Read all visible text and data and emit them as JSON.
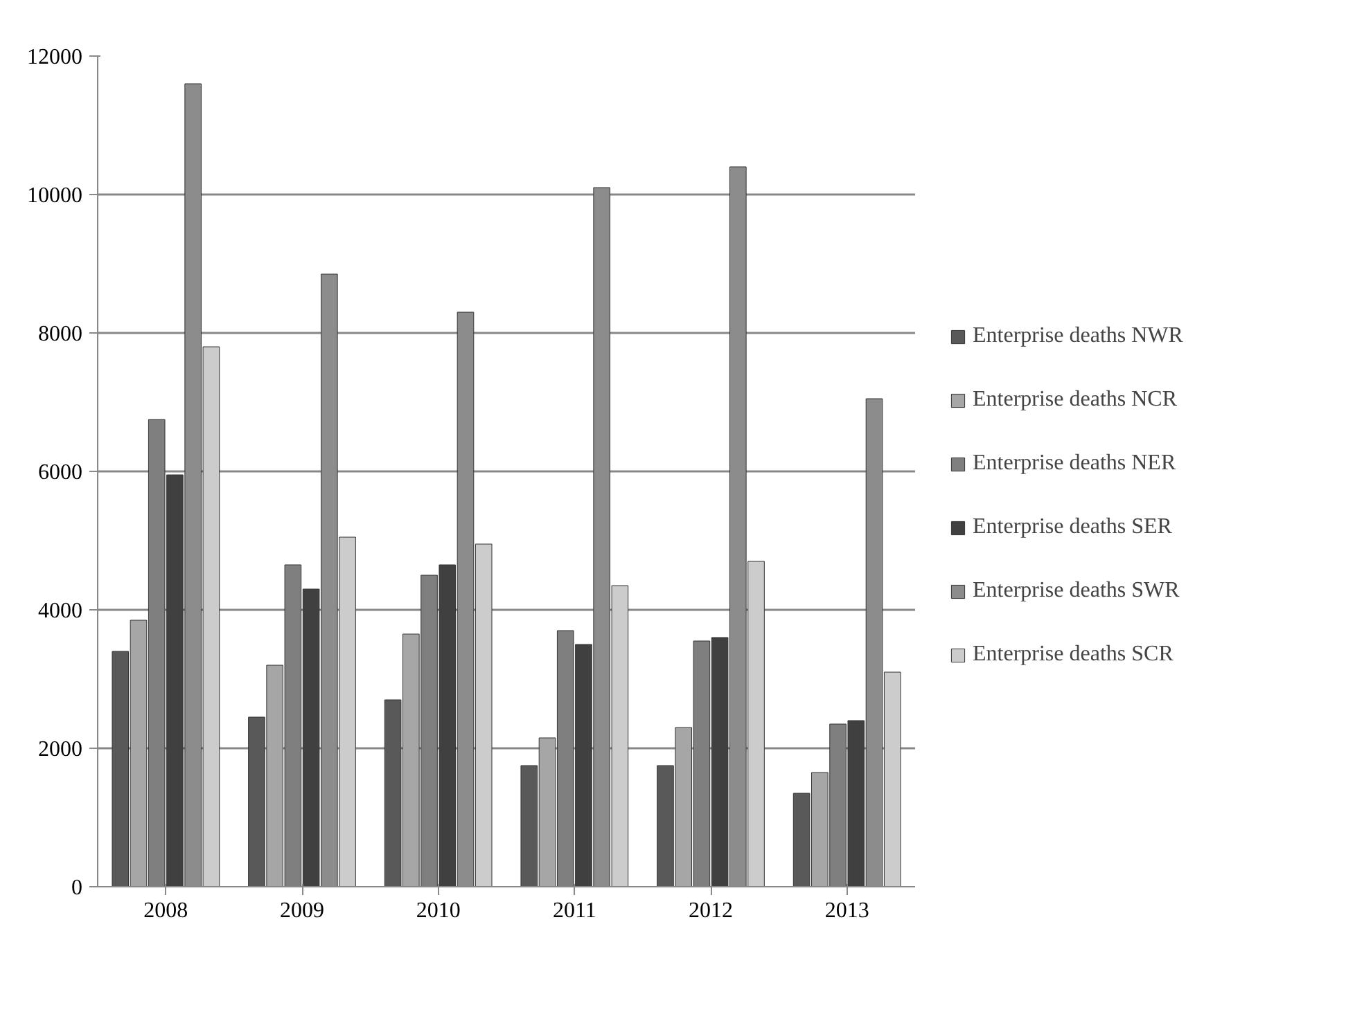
{
  "chart_data": {
    "type": "bar",
    "categories": [
      "2008",
      "2009",
      "2010",
      "2011",
      "2012",
      "2013"
    ],
    "series": [
      {
        "name": "Enterprise deaths NWR",
        "color": "#595959",
        "values": [
          3400,
          2450,
          2700,
          1750,
          1750,
          1350
        ]
      },
      {
        "name": "Enterprise deaths NCR",
        "color": "#a6a6a6",
        "values": [
          3850,
          3200,
          3650,
          2150,
          2300,
          1650
        ]
      },
      {
        "name": "Enterprise deaths NER",
        "color": "#7f7f7f",
        "values": [
          6750,
          4650,
          4500,
          3700,
          3550,
          2350
        ]
      },
      {
        "name": "Enterprise deaths SER",
        "color": "#404040",
        "values": [
          5950,
          4300,
          4650,
          3500,
          3600,
          2400
        ]
      },
      {
        "name": "Enterprise deaths SWR",
        "color": "#8c8c8c",
        "values": [
          11600,
          8850,
          8300,
          10100,
          10400,
          7050
        ]
      },
      {
        "name": "Enterprise deaths SCR",
        "color": "#cccccc",
        "values": [
          7800,
          5050,
          4950,
          4350,
          4700,
          3100
        ]
      }
    ],
    "ylim": [
      0,
      12000
    ],
    "yticks": [
      0,
      2000,
      4000,
      6000,
      8000,
      10000,
      12000
    ],
    "grid": "y",
    "legend": "right"
  }
}
